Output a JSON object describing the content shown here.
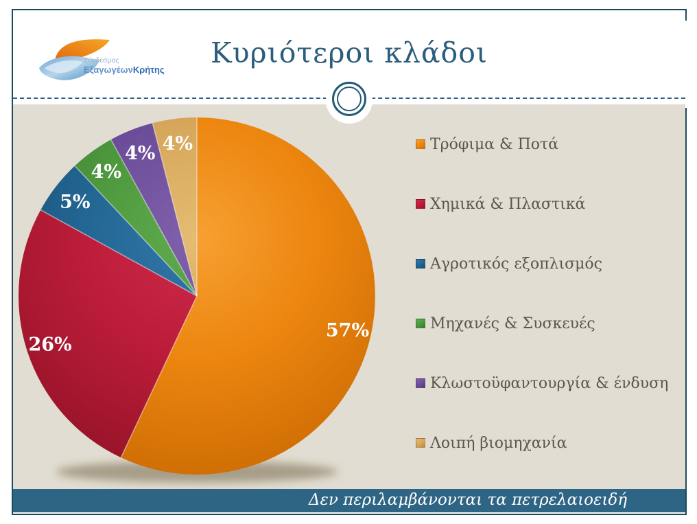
{
  "slide": {
    "title": "Κυριότεροι κλάδοι",
    "footer_note": "Δεν περιλαμβάνονται τα πετρελαιοειδή",
    "logo": {
      "line1": "Σύνδεσμος",
      "line2_regular": "Εξαγωγέων",
      "line2_bold": "Κρήτης"
    }
  },
  "colors": {
    "frame_border": "#1D495E",
    "title_text": "#2B5D7C",
    "content_background": "#E2DDD2",
    "footer_bar": "#2E6484",
    "legend_text": "#595551",
    "divider": "#2F5E7E"
  },
  "chart_data": {
    "type": "pie",
    "title": "Κυριότεροι κλάδοι",
    "unit": "%",
    "direction": "clockwise",
    "start_angle_deg": 0,
    "legend_position": "right",
    "label_color": "#ffffff",
    "slices": [
      {
        "label": "Τρόφιμα & Ποτά",
        "value": 57,
        "display": "57%",
        "color": "#EC860F",
        "color_light": "#F7A033",
        "color_dark": "#CF6E05"
      },
      {
        "label": "Χημικά & Πλαστικά",
        "value": 26,
        "display": "26%",
        "color": "#BB1C39",
        "color_light": "#D02A4C",
        "color_dark": "#971428"
      },
      {
        "label": "Αγροτικός εξοπλισμός",
        "value": 5,
        "display": "5%",
        "color": "#226592",
        "color_light": "#3278AA",
        "color_dark": "#164C70"
      },
      {
        "label": "Μηχανές & Συσκευές",
        "value": 4,
        "display": "4%",
        "color": "#4C963D",
        "color_light": "#61AC4E",
        "color_dark": "#38782C"
      },
      {
        "label": "Κλωστοϋφαντουργία & ένδυση",
        "value": 4,
        "display": "4%",
        "color": "#6C4D99",
        "color_light": "#8161AC",
        "color_dark": "#523A78"
      },
      {
        "label": "Λοιπή βιομηχανία",
        "value": 4,
        "display": "4%",
        "color": "#D5A65A",
        "color_light": "#E5BC72",
        "color_dark": "#B9893F"
      }
    ]
  }
}
